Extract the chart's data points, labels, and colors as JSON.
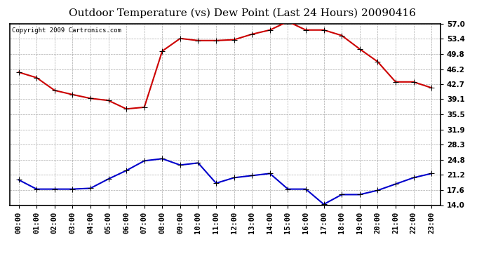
{
  "title": "Outdoor Temperature (vs) Dew Point (Last 24 Hours) 20090416",
  "copyright": "Copyright 2009 Cartronics.com",
  "hours": [
    "00:00",
    "01:00",
    "02:00",
    "03:00",
    "04:00",
    "05:00",
    "06:00",
    "07:00",
    "08:00",
    "09:00",
    "10:00",
    "11:00",
    "12:00",
    "13:00",
    "14:00",
    "15:00",
    "16:00",
    "17:00",
    "18:00",
    "19:00",
    "20:00",
    "21:00",
    "22:00",
    "23:00"
  ],
  "temp": [
    45.5,
    44.2,
    41.2,
    40.2,
    39.3,
    38.8,
    36.8,
    37.2,
    50.5,
    53.5,
    53.0,
    53.0,
    53.2,
    54.5,
    55.5,
    57.5,
    55.5,
    55.5,
    54.2,
    51.0,
    48.0,
    43.2,
    43.2,
    41.8
  ],
  "dewpoint": [
    20.0,
    17.8,
    17.8,
    17.8,
    18.0,
    20.2,
    22.2,
    24.5,
    25.0,
    23.5,
    24.0,
    19.2,
    20.5,
    21.0,
    21.5,
    17.8,
    17.8,
    14.2,
    16.5,
    16.5,
    17.5,
    19.0,
    20.5,
    21.5
  ],
  "temp_color": "#cc0000",
  "dew_color": "#0000cc",
  "y_ticks": [
    14.0,
    17.6,
    21.2,
    24.8,
    28.3,
    31.9,
    35.5,
    39.1,
    42.7,
    46.2,
    49.8,
    53.4,
    57.0
  ],
  "y_min": 14.0,
  "y_max": 57.0,
  "bg_color": "#ffffff",
  "plot_bg_color": "#ffffff",
  "grid_color": "#aaaaaa",
  "marker": "+",
  "marker_size": 6,
  "line_width": 1.5,
  "title_fontsize": 11,
  "tick_fontsize": 7.5,
  "copyright_fontsize": 6.5
}
